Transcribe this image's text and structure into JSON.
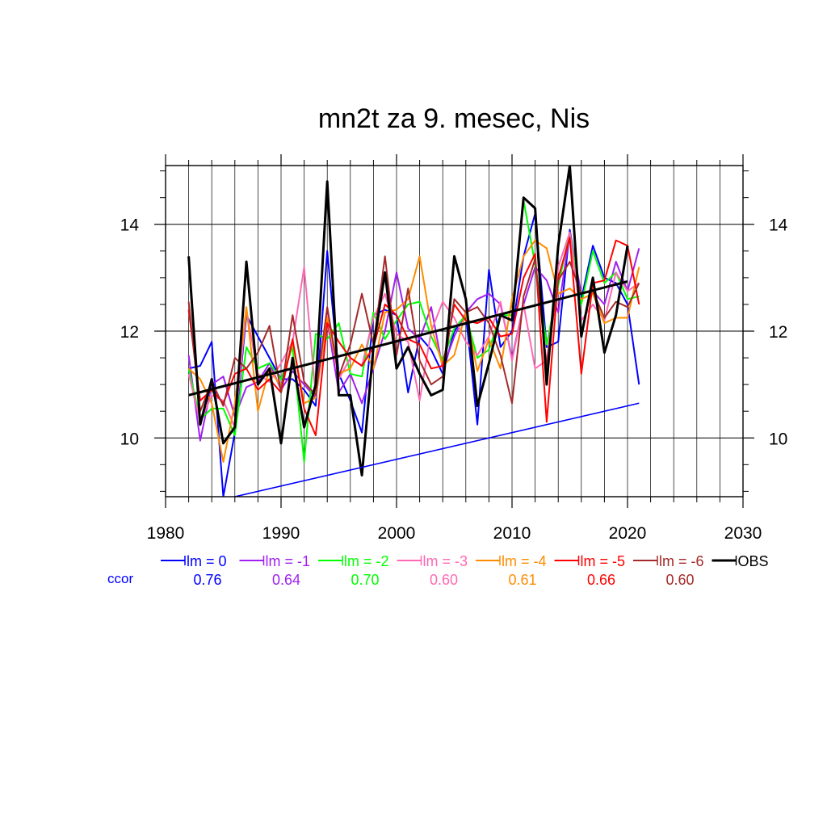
{
  "chart_data": {
    "type": "line",
    "title": "mn2t za 9. mesec, Nis",
    "xlim": [
      1980,
      2030
    ],
    "ylim": [
      8.9,
      15.1
    ],
    "x_ticks": [
      1980,
      1990,
      2000,
      2010,
      2020,
      2030
    ],
    "y_ticks": [
      10,
      12,
      14
    ],
    "grid": true,
    "legend_position": "bottom",
    "ccor_label": "ccor",
    "x": [
      1982,
      1983,
      1984,
      1985,
      1986,
      1987,
      1988,
      1989,
      1990,
      1991,
      1992,
      1993,
      1994,
      1995,
      1996,
      1997,
      1998,
      1999,
      2000,
      2001,
      2002,
      2003,
      2004,
      2005,
      2006,
      2007,
      2008,
      2009,
      2010,
      2011,
      2012,
      2013,
      2014,
      2015,
      2016,
      2017,
      2018,
      2019,
      2020,
      2021
    ],
    "series": [
      {
        "name": "lm = 0",
        "color": "#0000ff",
        "ccor": "0.76",
        "values": [
          11.3,
          11.35,
          11.8,
          8.9,
          10.1,
          12.3,
          11.9,
          11.5,
          11.1,
          11.1,
          10.9,
          10.6,
          13.5,
          11.2,
          10.7,
          10.1,
          12.3,
          12.4,
          12.3,
          10.85,
          11.9,
          11.65,
          11.2,
          12.0,
          12.3,
          10.25,
          13.15,
          11.7,
          12.0,
          13.4,
          14.2,
          11.7,
          11.8,
          13.9,
          12.6,
          13.6,
          13.0,
          12.9,
          12.5,
          11.0
        ]
      },
      {
        "name": "lm = -1",
        "color": "#a020f0",
        "ccor": "0.64",
        "values": [
          11.55,
          9.95,
          11.0,
          11.15,
          10.4,
          10.95,
          11.05,
          11.4,
          10.9,
          11.25,
          11.0,
          10.75,
          12.2,
          10.85,
          11.2,
          10.65,
          11.3,
          12.0,
          13.1,
          12.05,
          11.85,
          12.45,
          11.3,
          11.9,
          12.35,
          12.6,
          12.7,
          12.5,
          11.5,
          12.5,
          13.2,
          12.95,
          12.35,
          13.85,
          12.7,
          12.75,
          12.5,
          13.3,
          12.75,
          13.55
        ]
      },
      {
        "name": "lm = -2",
        "color": "#00ff00",
        "ccor": "0.70",
        "values": [
          11.3,
          10.35,
          10.55,
          10.55,
          10.05,
          11.7,
          11.3,
          11.4,
          11.1,
          11.7,
          9.55,
          11.95,
          11.85,
          12.15,
          11.2,
          11.15,
          12.35,
          11.85,
          12.2,
          12.5,
          12.55,
          11.9,
          11.45,
          12.05,
          12.3,
          11.5,
          11.65,
          12.3,
          12.3,
          14.45,
          13.25,
          11.75,
          12.85,
          13.85,
          12.5,
          13.5,
          12.9,
          13.1,
          12.6,
          12.65
        ]
      },
      {
        "name": "lm = -3",
        "color": "#ff69b4",
        "ccor": "0.60",
        "values": [
          11.2,
          10.3,
          10.8,
          10.7,
          10.2,
          12.4,
          11.2,
          11.05,
          11.4,
          11.8,
          13.2,
          10.8,
          12.3,
          11.1,
          11.5,
          11.35,
          12.25,
          12.7,
          11.95,
          11.8,
          10.7,
          12.0,
          12.55,
          12.25,
          11.8,
          11.55,
          11.9,
          12.55,
          11.45,
          12.5,
          11.3,
          11.45,
          13.2,
          13.85,
          12.2,
          12.5,
          12.2,
          13.1,
          12.75,
          12.9
        ]
      },
      {
        "name": "lm = -4",
        "color": "#ff8c00",
        "ccor": "0.61",
        "values": [
          11.3,
          11.1,
          10.65,
          9.55,
          10.65,
          12.45,
          10.5,
          11.3,
          10.95,
          11.8,
          10.65,
          10.75,
          12.25,
          11.2,
          11.3,
          11.75,
          11.3,
          12.35,
          12.4,
          12.6,
          13.4,
          12.1,
          11.35,
          11.55,
          12.35,
          11.25,
          11.85,
          11.3,
          12.6,
          13.4,
          13.7,
          13.55,
          12.7,
          12.8,
          12.6,
          12.7,
          12.15,
          12.25,
          12.25,
          13.2
        ]
      },
      {
        "name": "lm = -5",
        "color": "#ff0000",
        "ccor": "0.66",
        "values": [
          12.4,
          10.7,
          10.9,
          10.65,
          11.2,
          11.3,
          10.9,
          11.1,
          10.85,
          11.85,
          10.55,
          10.05,
          12.15,
          11.8,
          11.5,
          11.35,
          11.7,
          12.5,
          12.3,
          11.85,
          11.75,
          11.3,
          11.35,
          12.5,
          12.2,
          12.15,
          12.25,
          11.9,
          11.95,
          13.0,
          13.45,
          10.3,
          13.0,
          13.75,
          11.2,
          12.9,
          12.95,
          13.7,
          13.6,
          12.5
        ]
      },
      {
        "name": "lm = -6",
        "color": "#a52a2a",
        "ccor": "0.60",
        "values": [
          12.55,
          10.5,
          11.05,
          10.6,
          11.5,
          11.3,
          11.6,
          12.1,
          10.85,
          12.3,
          11.05,
          10.8,
          12.45,
          11.15,
          11.75,
          12.7,
          11.75,
          13.4,
          11.55,
          12.8,
          11.45,
          11.0,
          11.15,
          12.6,
          12.35,
          12.45,
          12.15,
          11.55,
          10.65,
          12.65,
          13.35,
          11.35,
          12.95,
          13.3,
          12.7,
          12.75,
          12.25,
          12.55,
          12.45,
          12.9
        ]
      },
      {
        "name": "OBS",
        "color": "#000000",
        "ccor": "",
        "values": [
          13.4,
          10.25,
          11.1,
          9.9,
          10.2,
          13.3,
          11.0,
          11.3,
          9.9,
          11.5,
          10.2,
          11.0,
          14.8,
          10.8,
          10.8,
          9.3,
          11.7,
          13.1,
          11.3,
          11.7,
          11.2,
          10.8,
          10.9,
          13.4,
          12.6,
          10.6,
          11.4,
          12.3,
          12.2,
          14.5,
          14.3,
          11.0,
          13.6,
          15.1,
          11.9,
          13.0,
          11.6,
          12.3,
          13.6,
          null
        ]
      }
    ],
    "trend_lines": [
      {
        "color": "#000000",
        "x": [
          1982,
          2020
        ],
        "values": [
          10.8,
          12.93
        ]
      },
      {
        "color": "#0000ff",
        "x": [
          1982,
          2021
        ],
        "values": [
          8.7,
          10.65
        ]
      }
    ]
  }
}
